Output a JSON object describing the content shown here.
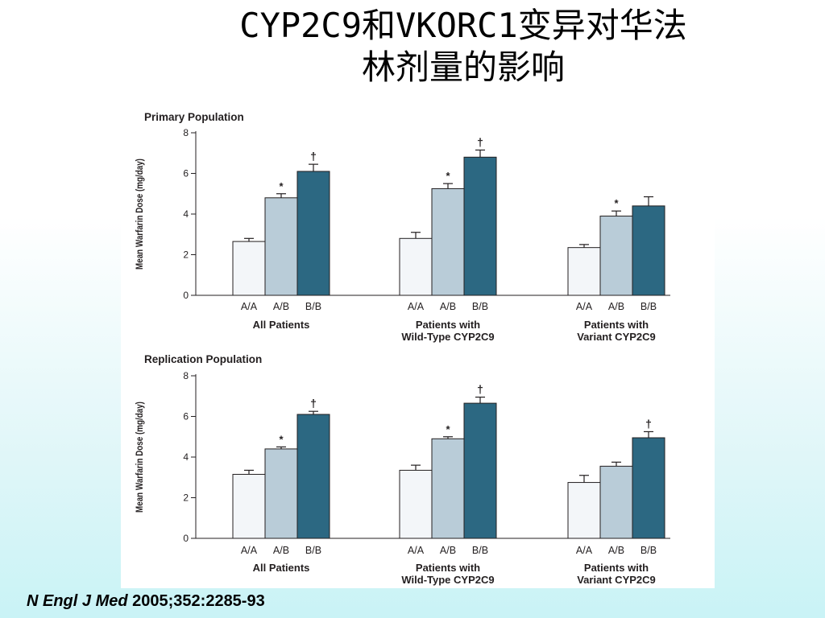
{
  "slide": {
    "title_line1": "CYP2C9和VKORC1变异对华法",
    "title_line2": "林剂量的影响",
    "citation_journal": "N Engl J Med",
    "citation_ref": " 2005;352:2285-93"
  },
  "chart_data": [
    {
      "type": "bar",
      "title": "Primary Population",
      "ylabel": "Mean Warfarin Dose (mg/day)",
      "ylim": [
        0,
        8
      ],
      "yticks": [
        "0",
        "2",
        "4",
        "6",
        "8"
      ],
      "categories": [
        "A/A",
        "A/B",
        "B/B"
      ],
      "group_labels": [
        [
          "All Patients",
          ""
        ],
        [
          "Patients with",
          "Wild-Type CYP2C9"
        ],
        [
          "Patients with",
          "Variant CYP2C9"
        ]
      ],
      "colors": [
        "#f3f6f9",
        "#b9ccd8",
        "#2c6882"
      ],
      "groups": [
        {
          "values": [
            2.65,
            4.8,
            6.1
          ],
          "errors": [
            0.15,
            0.2,
            0.35
          ],
          "markers": [
            "",
            "*",
            "†"
          ]
        },
        {
          "values": [
            2.8,
            5.25,
            6.8
          ],
          "errors": [
            0.3,
            0.25,
            0.35
          ],
          "markers": [
            "",
            "*",
            "†"
          ]
        },
        {
          "values": [
            2.35,
            3.9,
            4.4
          ],
          "errors": [
            0.15,
            0.25,
            0.45
          ],
          "markers": [
            "",
            "*",
            ""
          ]
        }
      ]
    },
    {
      "type": "bar",
      "title": "Replication Population",
      "ylabel": "Mean Warfarin Dose (mg/day)",
      "ylim": [
        0,
        8
      ],
      "yticks": [
        "0",
        "2",
        "4",
        "6",
        "8"
      ],
      "categories": [
        "A/A",
        "A/B",
        "B/B"
      ],
      "group_labels": [
        [
          "All Patients",
          ""
        ],
        [
          "Patients with",
          "Wild-Type CYP2C9"
        ],
        [
          "Patients with",
          "Variant CYP2C9"
        ]
      ],
      "colors": [
        "#f3f6f9",
        "#b9ccd8",
        "#2c6882"
      ],
      "groups": [
        {
          "values": [
            3.15,
            4.4,
            6.1
          ],
          "errors": [
            0.2,
            0.1,
            0.15
          ],
          "markers": [
            "",
            "*",
            "†"
          ]
        },
        {
          "values": [
            3.35,
            4.9,
            6.65
          ],
          "errors": [
            0.25,
            0.1,
            0.3
          ],
          "markers": [
            "",
            "*",
            "†"
          ]
        },
        {
          "values": [
            2.75,
            3.55,
            4.95
          ],
          "errors": [
            0.35,
            0.2,
            0.3
          ],
          "markers": [
            "",
            "",
            "†"
          ]
        }
      ]
    }
  ]
}
